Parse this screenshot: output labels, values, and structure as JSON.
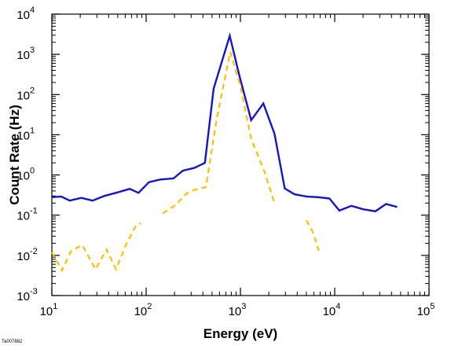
{
  "chart_data": {
    "type": "line",
    "title": "",
    "xlabel": "Energy (eV)",
    "ylabel": "Count Rate (Hz)",
    "x_scale": "log",
    "y_scale": "log",
    "xlim": [
      10,
      100000
    ],
    "ylim": [
      0.001,
      10000
    ],
    "grid": false,
    "legend": "none",
    "x_ticks": [
      {
        "base": "10",
        "exp": "1",
        "value": 10
      },
      {
        "base": "10",
        "exp": "2",
        "value": 100
      },
      {
        "base": "10",
        "exp": "3",
        "value": 1000
      },
      {
        "base": "10",
        "exp": "4",
        "value": 10000
      },
      {
        "base": "10",
        "exp": "5",
        "value": 100000
      }
    ],
    "y_ticks": [
      {
        "base": "10",
        "exp": "-3",
        "value": 0.001
      },
      {
        "base": "10",
        "exp": "-2",
        "value": 0.01
      },
      {
        "base": "10",
        "exp": "-1",
        "value": 0.1
      },
      {
        "base": "10",
        "exp": "0",
        "value": 1
      },
      {
        "base": "10",
        "exp": "1",
        "value": 10
      },
      {
        "base": "10",
        "exp": "2",
        "value": 100
      },
      {
        "base": "10",
        "exp": "3",
        "value": 1000
      },
      {
        "base": "10",
        "exp": "4",
        "value": 10000
      }
    ],
    "series": [
      {
        "style": "solid",
        "color": "#1414c8",
        "segments": [
          [
            [
              10,
              0.28
            ],
            [
              12.6,
              0.29
            ],
            [
              15.5,
              0.23
            ],
            [
              20.5,
              0.27
            ],
            [
              27,
              0.23
            ],
            [
              36,
              0.3
            ],
            [
              50,
              0.37
            ],
            [
              67,
              0.45
            ],
            [
              83,
              0.36
            ],
            [
              107,
              0.66
            ],
            [
              140,
              0.77
            ],
            [
              195,
              0.82
            ],
            [
              245,
              1.28
            ],
            [
              325,
              1.5
            ],
            [
              420,
              2.0
            ],
            [
              520,
              140
            ],
            [
              770,
              2900
            ],
            [
              970,
              310
            ],
            [
              1300,
              23
            ],
            [
              1750,
              60
            ],
            [
              2300,
              10.5
            ],
            [
              2950,
              0.46
            ],
            [
              3750,
              0.33
            ],
            [
              5050,
              0.29
            ],
            [
              6600,
              0.28
            ],
            [
              8800,
              0.26
            ],
            [
              11200,
              0.13
            ],
            [
              15000,
              0.17
            ],
            [
              20000,
              0.14
            ],
            [
              27000,
              0.125
            ],
            [
              35000,
              0.19
            ],
            [
              46000,
              0.16
            ]
          ]
        ]
      },
      {
        "style": "dashed",
        "color": "#ffbe00",
        "segments": [
          [
            [
              10,
              0.012
            ],
            [
              12.8,
              0.0042
            ],
            [
              16,
              0.013
            ],
            [
              21,
              0.018
            ],
            [
              29,
              0.0045
            ],
            [
              38,
              0.014
            ],
            [
              48,
              0.0045
            ],
            [
              62,
              0.02
            ],
            [
              78,
              0.055
            ],
            [
              88,
              0.063
            ]
          ],
          [
            [
              150,
              0.11
            ],
            [
              205,
              0.18
            ],
            [
              270,
              0.35
            ],
            [
              340,
              0.44
            ],
            [
              430,
              0.5
            ],
            [
              560,
              25
            ],
            [
              780,
              1150
            ],
            [
              1000,
              160
            ],
            [
              1300,
              8
            ],
            [
              1800,
              1.2
            ],
            [
              2300,
              0.2
            ]
          ],
          [
            [
              5000,
              0.075
            ],
            [
              5800,
              0.04
            ],
            [
              6800,
              0.013
            ]
          ]
        ]
      }
    ],
    "annotations": [
      "Ta007882"
    ]
  }
}
